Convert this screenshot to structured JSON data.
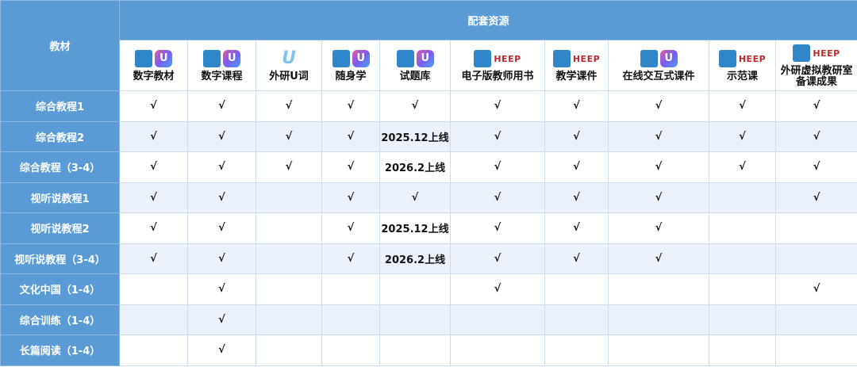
{
  "header": {
    "textbook": "教材",
    "resources": "配套资源"
  },
  "columns": [
    {
      "label": "数字教材",
      "icons": [
        "monitor-icon",
        "u-app-icon"
      ]
    },
    {
      "label": "数字课程",
      "icons": [
        "teacher-screen-icon",
        "u-app-icon"
      ]
    },
    {
      "label": "外研U词",
      "icons": [
        "u-word-logo-icon"
      ]
    },
    {
      "label": "随身学",
      "icons": [
        "mobile-learning-icon",
        "u-app-icon"
      ]
    },
    {
      "label": "试题库",
      "icons": [
        "exam-paper-icon",
        "u-app-icon"
      ]
    },
    {
      "label": "电子版教师用书",
      "icons": [
        "book-laptop-icon",
        "heep-logo"
      ]
    },
    {
      "label": "教学课件",
      "icons": [
        "courseware-icon",
        "heep-logo"
      ]
    },
    {
      "label": "在线交互式课件",
      "icons": [
        "interactive-courseware-icon",
        "u-app-icon"
      ]
    },
    {
      "label": "示范课",
      "icons": [
        "video-lesson-icon",
        "heep-logo"
      ]
    },
    {
      "label": "外研虚拟教研室备课成果",
      "icons": [
        "virtual-office-icon",
        "heep-logo"
      ]
    }
  ],
  "logo_text": {
    "heep": "HEEP",
    "u": "U"
  },
  "rows": [
    {
      "name": "综合教程1",
      "cells": [
        "√",
        "√",
        "√",
        "√",
        "√",
        "√",
        "√",
        "√",
        "√",
        "√"
      ]
    },
    {
      "name": "综合教程2",
      "cells": [
        "√",
        "√",
        "√",
        "√",
        "2025.12上线",
        "√",
        "√",
        "√",
        "√",
        "√"
      ]
    },
    {
      "name": "综合教程（3-4）",
      "cells": [
        "√",
        "√",
        "√",
        "√",
        "2026.2上线",
        "√",
        "√",
        "√",
        "√",
        "√"
      ]
    },
    {
      "name": "视听说教程1",
      "cells": [
        "√",
        "√",
        "",
        "√",
        "√",
        "√",
        "√",
        "√",
        "",
        "√"
      ]
    },
    {
      "name": "视听说教程2",
      "cells": [
        "√",
        "√",
        "",
        "√",
        "2025.12上线",
        "√",
        "√",
        "√",
        "",
        ""
      ]
    },
    {
      "name": "视听说教程（3-4）",
      "cells": [
        "√",
        "√",
        "",
        "√",
        "2026.2上线",
        "√",
        "√",
        "√",
        "",
        ""
      ]
    },
    {
      "name": "文化中国（1-4）",
      "cells": [
        "",
        "√",
        "",
        "",
        "",
        "√",
        "",
        "",
        "",
        "√"
      ]
    },
    {
      "name": "综合训练（1-4）",
      "cells": [
        "",
        "√",
        "",
        "",
        "",
        "",
        "",
        "",
        "",
        ""
      ]
    },
    {
      "name": "长篇阅读（1-4）",
      "cells": [
        "",
        "√",
        "",
        "",
        "",
        "",
        "",
        "",
        "",
        ""
      ]
    }
  ],
  "colors": {
    "header": "#5b9bd5",
    "alt_row": "#eaf1fa",
    "heep": "#c0282e"
  }
}
